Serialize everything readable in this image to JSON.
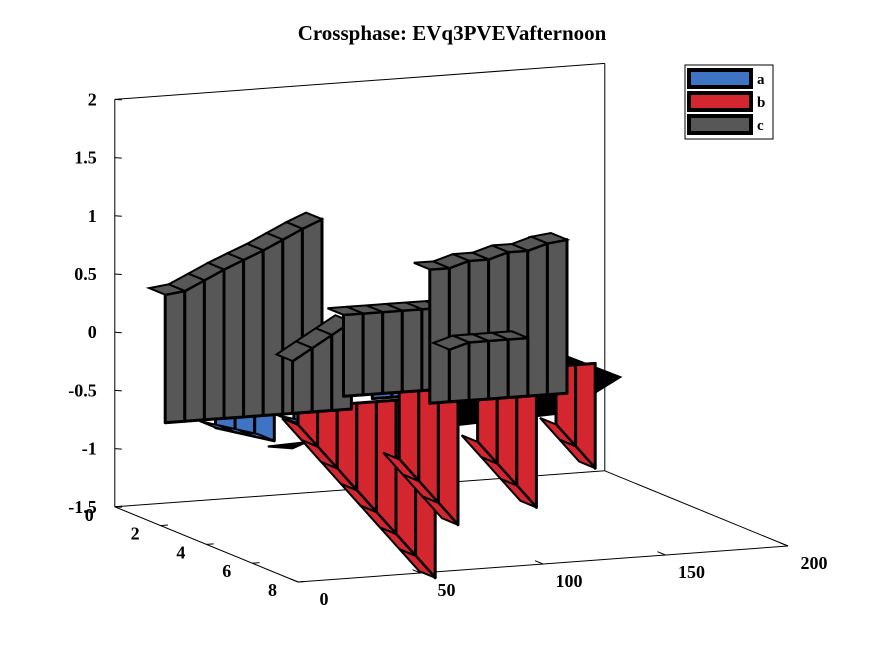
{
  "chart_data": {
    "type": "waterfall-3d",
    "title": "Crossphase: EVq3PVEVafternoon",
    "xlabel": "",
    "ylabel": "",
    "zlabel": "",
    "xlim": [
      0,
      200
    ],
    "ylim": [
      0,
      8
    ],
    "zlim": [
      -1.5,
      2
    ],
    "x_ticks": [
      "0",
      "50",
      "100",
      "150",
      "200"
    ],
    "y_ticks": [
      "0",
      "2",
      "4",
      "6",
      "8"
    ],
    "z_ticks": [
      "-1.5",
      "-1",
      "-0.5",
      "0",
      "0.5",
      "1",
      "1.5",
      "2"
    ],
    "legend_position": "top-right",
    "colors": {
      "a": "#3f74c4",
      "b": "#d4262f",
      "c": "#575757",
      "floor": "#000000"
    },
    "series": [
      {
        "name": "a",
        "segments": [
          {
            "x": [
              28,
              36,
              44,
              52
            ],
            "y": 1.4,
            "z": [
              -0.75,
              -0.8,
              -0.85,
              -0.9
            ]
          },
          {
            "x": [
              60,
              68,
              76
            ],
            "y": 1.4,
            "z": [
              -0.75,
              -0.8,
              -0.85
            ]
          },
          {
            "x": [
              92,
              100,
              108,
              116
            ],
            "y": 1.4,
            "z": [
              -0.45,
              -0.5,
              -0.55,
              -0.6
            ]
          },
          {
            "x": [
              132,
              140,
              148,
              156
            ],
            "y": 1.4,
            "z": [
              -0.45,
              -0.5,
              -0.55,
              -0.6
            ]
          }
        ]
      },
      {
        "name": "b",
        "segments": [
          {
            "x": [
              0,
              8,
              16,
              24,
              32,
              40,
              48,
              56
            ],
            "y": 8,
            "z": [
              -0.15,
              -0.35,
              -0.55,
              -0.75,
              -0.95,
              -1.15,
              -1.35,
              -1.55
            ]
          },
          {
            "x": [
              60,
              68,
              76,
              84
            ],
            "y": 6,
            "z": [
              -0.7,
              -0.9,
              -1.1,
              -1.3
            ]
          },
          {
            "x": [
              92,
              100,
              108,
              116
            ],
            "y": 6,
            "z": [
              -0.6,
              -0.8,
              -1.0,
              -1.2
            ]
          },
          {
            "x": [
              124,
              132,
              140
            ],
            "y": 6,
            "z": [
              -0.5,
              -0.7,
              -0.9
            ]
          }
        ]
      },
      {
        "name": "c",
        "segments": [
          {
            "x": [
              0,
              8,
              16,
              24,
              32,
              40,
              48,
              56,
              64
            ],
            "y": 2.2,
            "z": [
              0.5,
              0.52,
              0.6,
              0.68,
              0.75,
              0.82,
              0.9,
              0.98,
              1.05
            ]
          },
          {
            "x": [
              52,
              60,
              68,
              76
            ],
            "y": 2.2,
            "z": [
              -0.15,
              -0.05,
              0.05,
              0.15
            ]
          },
          {
            "x": [
              84,
              92,
              100,
              108,
              116,
              124,
              132,
              140
            ],
            "y": 1.0,
            "z": [
              0.1,
              0.1,
              0.1,
              0.1,
              0.1,
              0.1,
              0.1,
              0.1
            ]
          },
          {
            "x": [
              108,
              116,
              124,
              132,
              140,
              148,
              156,
              164
            ],
            "y": 2.2,
            "z": [
              0.55,
              0.55,
              0.6,
              0.6,
              0.65,
              0.65,
              0.7,
              0.72
            ]
          },
          {
            "x": [
              116,
              124,
              132,
              140,
              148
            ],
            "y": 2.2,
            "z": [
              -0.15,
              -0.1,
              -0.1,
              -0.1,
              -0.1
            ]
          }
        ]
      }
    ]
  }
}
